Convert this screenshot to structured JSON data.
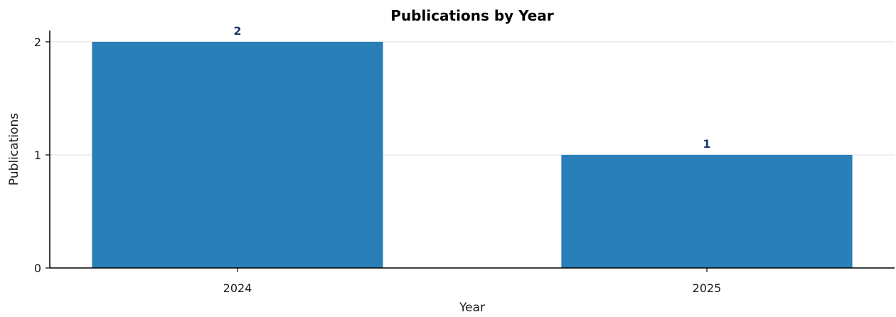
{
  "chart_data": {
    "type": "bar",
    "title": "Publications by Year",
    "xlabel": "Year",
    "ylabel": "Publications",
    "categories": [
      "2024",
      "2025"
    ],
    "values": [
      2,
      1
    ],
    "data_labels": [
      "2",
      "1"
    ],
    "yticks": [
      0,
      1,
      2
    ],
    "ylim": [
      0,
      2.1
    ],
    "grid": "horizontal",
    "legend": "none",
    "colors": {
      "bar": "#2b7fb8",
      "data_label": "#1f3a6b",
      "axis": "#000000",
      "grid": "#e6e6e6"
    }
  }
}
